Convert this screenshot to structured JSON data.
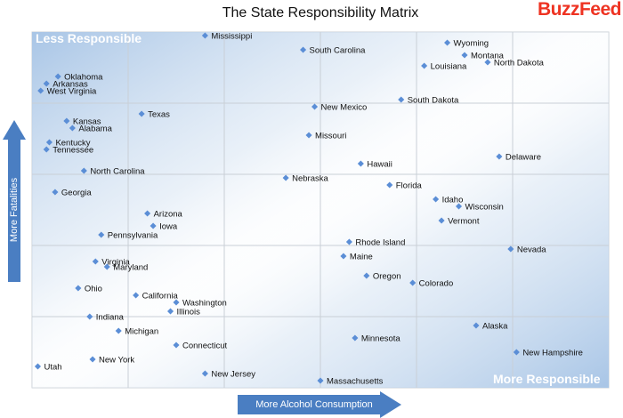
{
  "title": "The State Responsibility Matrix",
  "logo": "BuzzFeed",
  "colors": {
    "marker": "#5b8ed6",
    "grid": "#c9cfd6",
    "arrow": "#4a7ec2",
    "corner_shade": "#bcd2ea",
    "logo": "#ee3322"
  },
  "annotations": {
    "top_left": "Less Responsible",
    "bottom_right": "More Responsible"
  },
  "chart_data": {
    "type": "scatter",
    "title": "The State Responsibility Matrix",
    "xlabel": "More Alcohol Consumption",
    "ylabel": "More Fatalities",
    "xlim": [
      0,
      100
    ],
    "ylim": [
      0,
      100
    ],
    "grid": true,
    "points": [
      {
        "label": "Mississippi",
        "x": 30,
        "y": 99
      },
      {
        "label": "South Carolina",
        "x": 47,
        "y": 95
      },
      {
        "label": "Wyoming",
        "x": 72,
        "y": 97
      },
      {
        "label": "Montana",
        "x": 75,
        "y": 93.5
      },
      {
        "label": "North Dakota",
        "x": 79,
        "y": 91.5
      },
      {
        "label": "Louisiana",
        "x": 68,
        "y": 90.5
      },
      {
        "label": "South Dakota",
        "x": 64,
        "y": 81
      },
      {
        "label": "Oklahoma",
        "x": 4.5,
        "y": 87.5
      },
      {
        "label": "Arkansas",
        "x": 2.5,
        "y": 85.5
      },
      {
        "label": "West Virginia",
        "x": 1.5,
        "y": 83.5
      },
      {
        "label": "New Mexico",
        "x": 49,
        "y": 79
      },
      {
        "label": "Texas",
        "x": 19,
        "y": 77
      },
      {
        "label": "Kansas",
        "x": 6,
        "y": 75
      },
      {
        "label": "Alabama",
        "x": 7,
        "y": 73
      },
      {
        "label": "Missouri",
        "x": 48,
        "y": 71
      },
      {
        "label": "Kentucky",
        "x": 3,
        "y": 69
      },
      {
        "label": "Tennessee",
        "x": 2.5,
        "y": 67
      },
      {
        "label": "Delaware",
        "x": 81,
        "y": 65
      },
      {
        "label": "Hawaii",
        "x": 57,
        "y": 63
      },
      {
        "label": "North Carolina",
        "x": 9,
        "y": 61
      },
      {
        "label": "Nebraska",
        "x": 44,
        "y": 59
      },
      {
        "label": "Florida",
        "x": 62,
        "y": 57
      },
      {
        "label": "Georgia",
        "x": 4,
        "y": 55
      },
      {
        "label": "Idaho",
        "x": 70,
        "y": 53
      },
      {
        "label": "Wisconsin",
        "x": 74,
        "y": 51
      },
      {
        "label": "Arizona",
        "x": 20,
        "y": 49
      },
      {
        "label": "Vermont",
        "x": 71,
        "y": 47
      },
      {
        "label": "Iowa",
        "x": 21,
        "y": 45.5
      },
      {
        "label": "Pennsylvania",
        "x": 12,
        "y": 43
      },
      {
        "label": "Rhode Island",
        "x": 55,
        "y": 41
      },
      {
        "label": "Nevada",
        "x": 83,
        "y": 39
      },
      {
        "label": "Maine",
        "x": 54,
        "y": 37
      },
      {
        "label": "Virginia",
        "x": 11,
        "y": 35.5
      },
      {
        "label": "Maryland",
        "x": 13,
        "y": 34
      },
      {
        "label": "Oregon",
        "x": 58,
        "y": 31.5
      },
      {
        "label": "Colorado",
        "x": 66,
        "y": 29.5
      },
      {
        "label": "Ohio",
        "x": 8,
        "y": 28
      },
      {
        "label": "California",
        "x": 18,
        "y": 26
      },
      {
        "label": "Washington",
        "x": 25,
        "y": 24
      },
      {
        "label": "Illinois",
        "x": 24,
        "y": 21.5
      },
      {
        "label": "Indiana",
        "x": 10,
        "y": 20
      },
      {
        "label": "Alaska",
        "x": 77,
        "y": 17.5
      },
      {
        "label": "Michigan",
        "x": 15,
        "y": 16
      },
      {
        "label": "Minnesota",
        "x": 56,
        "y": 14
      },
      {
        "label": "Connecticut",
        "x": 25,
        "y": 12
      },
      {
        "label": "New Hampshire",
        "x": 84,
        "y": 10
      },
      {
        "label": "New York",
        "x": 10.5,
        "y": 8
      },
      {
        "label": "Utah",
        "x": 1,
        "y": 6
      },
      {
        "label": "New Jersey",
        "x": 30,
        "y": 4
      },
      {
        "label": "Massachusetts",
        "x": 50,
        "y": 2
      }
    ]
  }
}
